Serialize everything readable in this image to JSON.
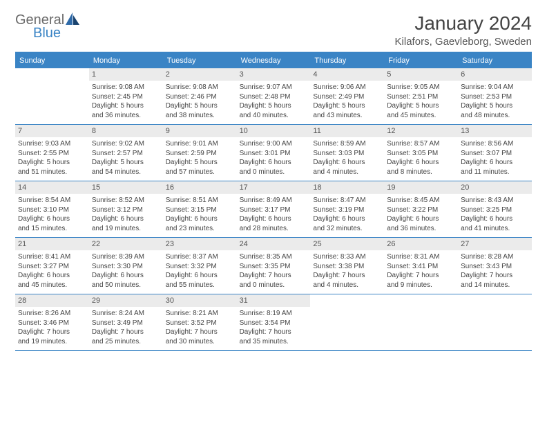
{
  "logo": {
    "word1": "General",
    "word2": "Blue"
  },
  "title": "January 2024",
  "location": "Kilafors, Gaevleborg, Sweden",
  "day_names": [
    "Sunday",
    "Monday",
    "Tuesday",
    "Wednesday",
    "Thursday",
    "Friday",
    "Saturday"
  ],
  "colors": {
    "accent": "#3a84c5",
    "header_bg": "#3a84c5",
    "daynum_bg": "#ebebeb",
    "text": "#444"
  },
  "weeks": [
    [
      {
        "n": "",
        "sunrise": "",
        "sunset": "",
        "daylight1": "",
        "daylight2": ""
      },
      {
        "n": "1",
        "sunrise": "Sunrise: 9:08 AM",
        "sunset": "Sunset: 2:45 PM",
        "daylight1": "Daylight: 5 hours",
        "daylight2": "and 36 minutes."
      },
      {
        "n": "2",
        "sunrise": "Sunrise: 9:08 AM",
        "sunset": "Sunset: 2:46 PM",
        "daylight1": "Daylight: 5 hours",
        "daylight2": "and 38 minutes."
      },
      {
        "n": "3",
        "sunrise": "Sunrise: 9:07 AM",
        "sunset": "Sunset: 2:48 PM",
        "daylight1": "Daylight: 5 hours",
        "daylight2": "and 40 minutes."
      },
      {
        "n": "4",
        "sunrise": "Sunrise: 9:06 AM",
        "sunset": "Sunset: 2:49 PM",
        "daylight1": "Daylight: 5 hours",
        "daylight2": "and 43 minutes."
      },
      {
        "n": "5",
        "sunrise": "Sunrise: 9:05 AM",
        "sunset": "Sunset: 2:51 PM",
        "daylight1": "Daylight: 5 hours",
        "daylight2": "and 45 minutes."
      },
      {
        "n": "6",
        "sunrise": "Sunrise: 9:04 AM",
        "sunset": "Sunset: 2:53 PM",
        "daylight1": "Daylight: 5 hours",
        "daylight2": "and 48 minutes."
      }
    ],
    [
      {
        "n": "7",
        "sunrise": "Sunrise: 9:03 AM",
        "sunset": "Sunset: 2:55 PM",
        "daylight1": "Daylight: 5 hours",
        "daylight2": "and 51 minutes."
      },
      {
        "n": "8",
        "sunrise": "Sunrise: 9:02 AM",
        "sunset": "Sunset: 2:57 PM",
        "daylight1": "Daylight: 5 hours",
        "daylight2": "and 54 minutes."
      },
      {
        "n": "9",
        "sunrise": "Sunrise: 9:01 AM",
        "sunset": "Sunset: 2:59 PM",
        "daylight1": "Daylight: 5 hours",
        "daylight2": "and 57 minutes."
      },
      {
        "n": "10",
        "sunrise": "Sunrise: 9:00 AM",
        "sunset": "Sunset: 3:01 PM",
        "daylight1": "Daylight: 6 hours",
        "daylight2": "and 0 minutes."
      },
      {
        "n": "11",
        "sunrise": "Sunrise: 8:59 AM",
        "sunset": "Sunset: 3:03 PM",
        "daylight1": "Daylight: 6 hours",
        "daylight2": "and 4 minutes."
      },
      {
        "n": "12",
        "sunrise": "Sunrise: 8:57 AM",
        "sunset": "Sunset: 3:05 PM",
        "daylight1": "Daylight: 6 hours",
        "daylight2": "and 8 minutes."
      },
      {
        "n": "13",
        "sunrise": "Sunrise: 8:56 AM",
        "sunset": "Sunset: 3:07 PM",
        "daylight1": "Daylight: 6 hours",
        "daylight2": "and 11 minutes."
      }
    ],
    [
      {
        "n": "14",
        "sunrise": "Sunrise: 8:54 AM",
        "sunset": "Sunset: 3:10 PM",
        "daylight1": "Daylight: 6 hours",
        "daylight2": "and 15 minutes."
      },
      {
        "n": "15",
        "sunrise": "Sunrise: 8:52 AM",
        "sunset": "Sunset: 3:12 PM",
        "daylight1": "Daylight: 6 hours",
        "daylight2": "and 19 minutes."
      },
      {
        "n": "16",
        "sunrise": "Sunrise: 8:51 AM",
        "sunset": "Sunset: 3:15 PM",
        "daylight1": "Daylight: 6 hours",
        "daylight2": "and 23 minutes."
      },
      {
        "n": "17",
        "sunrise": "Sunrise: 8:49 AM",
        "sunset": "Sunset: 3:17 PM",
        "daylight1": "Daylight: 6 hours",
        "daylight2": "and 28 minutes."
      },
      {
        "n": "18",
        "sunrise": "Sunrise: 8:47 AM",
        "sunset": "Sunset: 3:19 PM",
        "daylight1": "Daylight: 6 hours",
        "daylight2": "and 32 minutes."
      },
      {
        "n": "19",
        "sunrise": "Sunrise: 8:45 AM",
        "sunset": "Sunset: 3:22 PM",
        "daylight1": "Daylight: 6 hours",
        "daylight2": "and 36 minutes."
      },
      {
        "n": "20",
        "sunrise": "Sunrise: 8:43 AM",
        "sunset": "Sunset: 3:25 PM",
        "daylight1": "Daylight: 6 hours",
        "daylight2": "and 41 minutes."
      }
    ],
    [
      {
        "n": "21",
        "sunrise": "Sunrise: 8:41 AM",
        "sunset": "Sunset: 3:27 PM",
        "daylight1": "Daylight: 6 hours",
        "daylight2": "and 45 minutes."
      },
      {
        "n": "22",
        "sunrise": "Sunrise: 8:39 AM",
        "sunset": "Sunset: 3:30 PM",
        "daylight1": "Daylight: 6 hours",
        "daylight2": "and 50 minutes."
      },
      {
        "n": "23",
        "sunrise": "Sunrise: 8:37 AM",
        "sunset": "Sunset: 3:32 PM",
        "daylight1": "Daylight: 6 hours",
        "daylight2": "and 55 minutes."
      },
      {
        "n": "24",
        "sunrise": "Sunrise: 8:35 AM",
        "sunset": "Sunset: 3:35 PM",
        "daylight1": "Daylight: 7 hours",
        "daylight2": "and 0 minutes."
      },
      {
        "n": "25",
        "sunrise": "Sunrise: 8:33 AM",
        "sunset": "Sunset: 3:38 PM",
        "daylight1": "Daylight: 7 hours",
        "daylight2": "and 4 minutes."
      },
      {
        "n": "26",
        "sunrise": "Sunrise: 8:31 AM",
        "sunset": "Sunset: 3:41 PM",
        "daylight1": "Daylight: 7 hours",
        "daylight2": "and 9 minutes."
      },
      {
        "n": "27",
        "sunrise": "Sunrise: 8:28 AM",
        "sunset": "Sunset: 3:43 PM",
        "daylight1": "Daylight: 7 hours",
        "daylight2": "and 14 minutes."
      }
    ],
    [
      {
        "n": "28",
        "sunrise": "Sunrise: 8:26 AM",
        "sunset": "Sunset: 3:46 PM",
        "daylight1": "Daylight: 7 hours",
        "daylight2": "and 19 minutes."
      },
      {
        "n": "29",
        "sunrise": "Sunrise: 8:24 AM",
        "sunset": "Sunset: 3:49 PM",
        "daylight1": "Daylight: 7 hours",
        "daylight2": "and 25 minutes."
      },
      {
        "n": "30",
        "sunrise": "Sunrise: 8:21 AM",
        "sunset": "Sunset: 3:52 PM",
        "daylight1": "Daylight: 7 hours",
        "daylight2": "and 30 minutes."
      },
      {
        "n": "31",
        "sunrise": "Sunrise: 8:19 AM",
        "sunset": "Sunset: 3:54 PM",
        "daylight1": "Daylight: 7 hours",
        "daylight2": "and 35 minutes."
      },
      {
        "n": "",
        "sunrise": "",
        "sunset": "",
        "daylight1": "",
        "daylight2": ""
      },
      {
        "n": "",
        "sunrise": "",
        "sunset": "",
        "daylight1": "",
        "daylight2": ""
      },
      {
        "n": "",
        "sunrise": "",
        "sunset": "",
        "daylight1": "",
        "daylight2": ""
      }
    ]
  ]
}
